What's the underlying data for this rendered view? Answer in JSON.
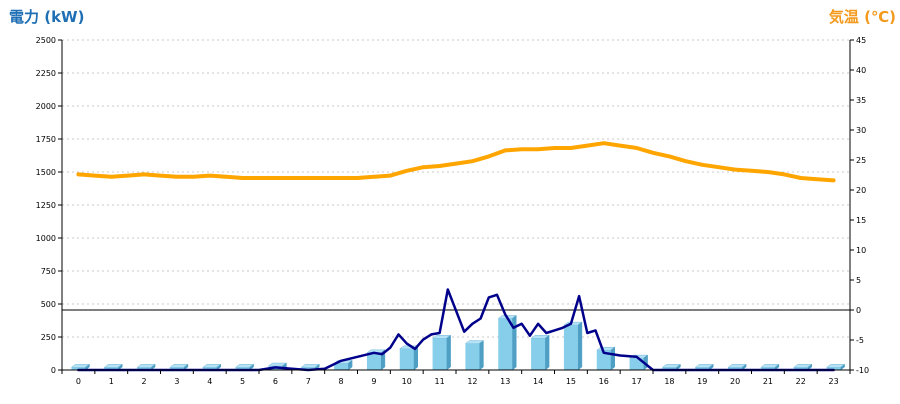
{
  "chart_data": {
    "type": "bar",
    "left_axis_title": "電力 (kW)",
    "right_axis_title": "気温 (℃)",
    "categories": [
      "0",
      "1",
      "2",
      "3",
      "4",
      "5",
      "6",
      "7",
      "8",
      "9",
      "10",
      "11",
      "12",
      "13",
      "14",
      "15",
      "16",
      "17",
      "18",
      "19",
      "20",
      "21",
      "22",
      "23"
    ],
    "y_left": {
      "min": 0,
      "max": 2500,
      "ticks": [
        0,
        250,
        500,
        750,
        1000,
        1250,
        1500,
        1750,
        2000,
        2250,
        2500
      ]
    },
    "y_right": {
      "min": -10,
      "max": 45,
      "ticks": [
        -10,
        -5,
        0,
        5,
        10,
        15,
        20,
        25,
        30,
        35,
        40,
        45
      ]
    },
    "reference_line": {
      "axis": "right",
      "value": 0
    },
    "grid": "horizontal-dotted",
    "series": [
      {
        "type": "bar",
        "axis": "left",
        "color": "#87ceeb",
        "values": [
          20,
          20,
          20,
          20,
          20,
          20,
          30,
          20,
          50,
          130,
          160,
          240,
          200,
          390,
          240,
          340,
          150,
          90,
          20,
          20,
          20,
          20,
          20,
          20
        ]
      },
      {
        "type": "line",
        "axis": "left",
        "color": "#00008b",
        "x": [
          0,
          1,
          2,
          3,
          4,
          5,
          5.5,
          6,
          6.5,
          7,
          7.5,
          8,
          8.5,
          9,
          9.25,
          9.5,
          9.75,
          10,
          10.25,
          10.5,
          10.75,
          11,
          11.25,
          11.5,
          11.75,
          12,
          12.25,
          12.5,
          12.75,
          13,
          13.25,
          13.5,
          13.75,
          14,
          14.25,
          14.5,
          14.75,
          15,
          15.25,
          15.5,
          15.75,
          16,
          16.5,
          17,
          17.5,
          18,
          19,
          20,
          21,
          22,
          23
        ],
        "y": [
          0,
          0,
          0,
          0,
          0,
          0,
          0,
          20,
          10,
          0,
          10,
          70,
          100,
          130,
          120,
          170,
          270,
          200,
          160,
          230,
          270,
          280,
          610,
          450,
          290,
          350,
          390,
          550,
          570,
          420,
          320,
          350,
          260,
          350,
          280,
          300,
          320,
          350,
          560,
          280,
          300,
          130,
          110,
          100,
          0,
          0,
          0,
          0,
          0,
          0,
          0
        ]
      },
      {
        "type": "line",
        "axis": "right",
        "color": "#ffa500",
        "x": [
          0,
          0.5,
          1,
          1.5,
          2,
          2.5,
          3,
          3.5,
          4,
          4.5,
          5,
          5.5,
          6,
          6.5,
          7,
          7.5,
          8,
          8.5,
          9,
          9.5,
          10,
          10.5,
          11,
          11.5,
          12,
          12.5,
          13,
          13.5,
          14,
          14.5,
          15,
          15.5,
          16,
          16.5,
          17,
          17.5,
          18,
          18.5,
          19,
          19.5,
          20,
          20.5,
          21,
          21.5,
          22,
          22.5,
          23
        ],
        "y": [
          22.6,
          22.4,
          22.2,
          22.4,
          22.6,
          22.4,
          22.2,
          22.2,
          22.4,
          22.2,
          22.0,
          22.0,
          22.0,
          22.0,
          22.0,
          22.0,
          22.0,
          22.0,
          22.2,
          22.4,
          23.2,
          23.8,
          24.0,
          24.4,
          24.8,
          25.6,
          26.6,
          26.8,
          26.8,
          27.0,
          27.0,
          27.4,
          27.8,
          27.4,
          27.0,
          26.2,
          25.6,
          24.8,
          24.2,
          23.8,
          23.4,
          23.2,
          23.0,
          22.6,
          22.0,
          21.8,
          21.6
        ]
      }
    ]
  }
}
